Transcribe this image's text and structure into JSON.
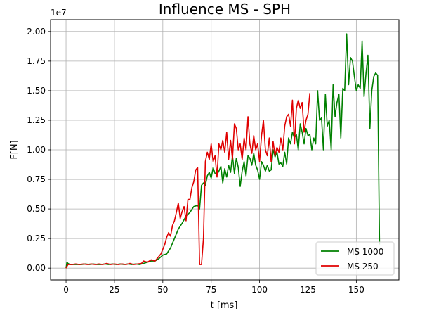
{
  "chart_data": {
    "type": "line",
    "title": "Influence MS - SPH",
    "xlabel": "t [ms]",
    "ylabel": "F[N]",
    "y_offset_label": "1e7",
    "xlim": [
      -8,
      172
    ],
    "ylim": [
      -0.1,
      2.1
    ],
    "xticks": [
      0,
      25,
      50,
      75,
      100,
      125,
      150
    ],
    "yticks": [
      0.0,
      0.25,
      0.5,
      0.75,
      1.0,
      1.25,
      1.5,
      1.75,
      2.0
    ],
    "xtick_labels": [
      "0",
      "25",
      "50",
      "75",
      "100",
      "125",
      "150"
    ],
    "ytick_labels": [
      "0.00",
      "0.25",
      "0.50",
      "0.75",
      "1.00",
      "1.25",
      "1.50",
      "1.75",
      "2.00"
    ],
    "grid": true,
    "legend_position": "bottom-right",
    "series": [
      {
        "name": "MS 1000",
        "color": "#008000",
        "points": [
          [
            0,
            0.0
          ],
          [
            0.5,
            0.05
          ],
          [
            1,
            0.04
          ],
          [
            2,
            0.03
          ],
          [
            4,
            0.03
          ],
          [
            6,
            0.03
          ],
          [
            8,
            0.03
          ],
          [
            10,
            0.035
          ],
          [
            12,
            0.03
          ],
          [
            14,
            0.035
          ],
          [
            16,
            0.03
          ],
          [
            18,
            0.03
          ],
          [
            20,
            0.035
          ],
          [
            22,
            0.03
          ],
          [
            24,
            0.035
          ],
          [
            26,
            0.03
          ],
          [
            28,
            0.035
          ],
          [
            30,
            0.03
          ],
          [
            32,
            0.035
          ],
          [
            34,
            0.03
          ],
          [
            36,
            0.035
          ],
          [
            38,
            0.03
          ],
          [
            40,
            0.04
          ],
          [
            42,
            0.05
          ],
          [
            44,
            0.06
          ],
          [
            46,
            0.06
          ],
          [
            48,
            0.08
          ],
          [
            50,
            0.11
          ],
          [
            52,
            0.12
          ],
          [
            54,
            0.17
          ],
          [
            56,
            0.25
          ],
          [
            58,
            0.33
          ],
          [
            60,
            0.38
          ],
          [
            62,
            0.44
          ],
          [
            64,
            0.47
          ],
          [
            66,
            0.52
          ],
          [
            68,
            0.53
          ],
          [
            69,
            0.5
          ],
          [
            70,
            0.7
          ],
          [
            71,
            0.72
          ],
          [
            72,
            0.7
          ],
          [
            73,
            0.78
          ],
          [
            74,
            0.81
          ],
          [
            75,
            0.76
          ],
          [
            76,
            0.85
          ],
          [
            77,
            0.8
          ],
          [
            78,
            0.79
          ],
          [
            79,
            0.82
          ],
          [
            80,
            0.86
          ],
          [
            81,
            0.72
          ],
          [
            82,
            0.84
          ],
          [
            83,
            0.77
          ],
          [
            84,
            0.87
          ],
          [
            85,
            0.81
          ],
          [
            86,
            0.95
          ],
          [
            87,
            0.8
          ],
          [
            88,
            0.93
          ],
          [
            89,
            0.85
          ],
          [
            90,
            0.69
          ],
          [
            91,
            0.82
          ],
          [
            92,
            0.9
          ],
          [
            93,
            0.78
          ],
          [
            94,
            0.95
          ],
          [
            95,
            0.93
          ],
          [
            96,
            0.87
          ],
          [
            97,
            0.97
          ],
          [
            98,
            0.87
          ],
          [
            99,
            0.83
          ],
          [
            100,
            0.75
          ],
          [
            101,
            0.9
          ],
          [
            102,
            0.87
          ],
          [
            103,
            0.82
          ],
          [
            104,
            0.87
          ],
          [
            105,
            0.82
          ],
          [
            106,
            0.83
          ],
          [
            107,
            1.0
          ],
          [
            108,
            0.94
          ],
          [
            109,
            0.98
          ],
          [
            110,
            0.88
          ],
          [
            111,
            0.89
          ],
          [
            112,
            0.86
          ],
          [
            113,
            0.98
          ],
          [
            114,
            0.88
          ],
          [
            115,
            1.1
          ],
          [
            116,
            1.05
          ],
          [
            117,
            1.15
          ],
          [
            118,
            1.1
          ],
          [
            119,
            1.13
          ],
          [
            120,
            1.0
          ],
          [
            121,
            1.22
          ],
          [
            122,
            1.15
          ],
          [
            123,
            1.05
          ],
          [
            124,
            1.18
          ],
          [
            125,
            1.12
          ],
          [
            126,
            1.13
          ],
          [
            127,
            1.0
          ],
          [
            128,
            1.1
          ],
          [
            129,
            1.05
          ],
          [
            130,
            1.5
          ],
          [
            131,
            1.25
          ],
          [
            132,
            1.27
          ],
          [
            133,
            1.0
          ],
          [
            134,
            1.47
          ],
          [
            135,
            1.2
          ],
          [
            136,
            1.25
          ],
          [
            137,
            1.0
          ],
          [
            138,
            1.55
          ],
          [
            139,
            1.28
          ],
          [
            140,
            1.4
          ],
          [
            141,
            1.47
          ],
          [
            142,
            1.1
          ],
          [
            143,
            1.52
          ],
          [
            144,
            1.5
          ],
          [
            145,
            1.98
          ],
          [
            146,
            1.55
          ],
          [
            147,
            1.78
          ],
          [
            148,
            1.75
          ],
          [
            149,
            1.62
          ],
          [
            150,
            1.5
          ],
          [
            151,
            1.55
          ],
          [
            152,
            1.52
          ],
          [
            153,
            1.92
          ],
          [
            154,
            1.45
          ],
          [
            155,
            1.65
          ],
          [
            156,
            1.8
          ],
          [
            157,
            1.18
          ],
          [
            158,
            1.5
          ],
          [
            159,
            1.62
          ],
          [
            160,
            1.65
          ],
          [
            161,
            1.63
          ],
          [
            162,
            0.2
          ]
        ]
      },
      {
        "name": "MS 250",
        "color": "#e00000",
        "points": [
          [
            0,
            0.0
          ],
          [
            1,
            0.03
          ],
          [
            3,
            0.03
          ],
          [
            5,
            0.035
          ],
          [
            7,
            0.03
          ],
          [
            9,
            0.035
          ],
          [
            11,
            0.03
          ],
          [
            13,
            0.035
          ],
          [
            15,
            0.03
          ],
          [
            17,
            0.035
          ],
          [
            19,
            0.03
          ],
          [
            21,
            0.04
          ],
          [
            23,
            0.03
          ],
          [
            25,
            0.035
          ],
          [
            27,
            0.03
          ],
          [
            29,
            0.035
          ],
          [
            31,
            0.03
          ],
          [
            33,
            0.04
          ],
          [
            35,
            0.03
          ],
          [
            37,
            0.035
          ],
          [
            39,
            0.04
          ],
          [
            40,
            0.06
          ],
          [
            42,
            0.05
          ],
          [
            44,
            0.07
          ],
          [
            46,
            0.06
          ],
          [
            48,
            0.1
          ],
          [
            49,
            0.12
          ],
          [
            50,
            0.16
          ],
          [
            51,
            0.2
          ],
          [
            52,
            0.26
          ],
          [
            53,
            0.3
          ],
          [
            54,
            0.27
          ],
          [
            55,
            0.36
          ],
          [
            56,
            0.4
          ],
          [
            57,
            0.47
          ],
          [
            58,
            0.55
          ],
          [
            59,
            0.42
          ],
          [
            60,
            0.48
          ],
          [
            61,
            0.52
          ],
          [
            62,
            0.4
          ],
          [
            63,
            0.58
          ],
          [
            64,
            0.58
          ],
          [
            65,
            0.68
          ],
          [
            66,
            0.73
          ],
          [
            67,
            0.83
          ],
          [
            68,
            0.85
          ],
          [
            69,
            0.03
          ],
          [
            70,
            0.03
          ],
          [
            71,
            0.25
          ],
          [
            72,
            0.9
          ],
          [
            73,
            0.98
          ],
          [
            74,
            0.92
          ],
          [
            75,
            1.05
          ],
          [
            76,
            0.9
          ],
          [
            77,
            0.95
          ],
          [
            78,
            0.77
          ],
          [
            79,
            1.05
          ],
          [
            80,
            1.0
          ],
          [
            81,
            1.08
          ],
          [
            82,
            0.98
          ],
          [
            83,
            1.15
          ],
          [
            84,
            0.92
          ],
          [
            85,
            1.08
          ],
          [
            86,
            0.92
          ],
          [
            87,
            1.22
          ],
          [
            88,
            1.18
          ],
          [
            89,
            1.0
          ],
          [
            90,
            1.05
          ],
          [
            91,
            0.92
          ],
          [
            92,
            1.1
          ],
          [
            93,
            1.0
          ],
          [
            94,
            1.28
          ],
          [
            95,
            1.05
          ],
          [
            96,
            0.97
          ],
          [
            97,
            1.12
          ],
          [
            98,
            1.0
          ],
          [
            99,
            1.05
          ],
          [
            100,
            0.9
          ],
          [
            101,
            1.12
          ],
          [
            102,
            1.25
          ],
          [
            103,
            1.0
          ],
          [
            104,
            0.95
          ],
          [
            105,
            1.1
          ],
          [
            106,
            0.9
          ],
          [
            107,
            1.07
          ],
          [
            108,
            0.95
          ],
          [
            109,
            1.02
          ],
          [
            110,
            0.98
          ],
          [
            111,
            1.1
          ],
          [
            112,
            1.0
          ],
          [
            113,
            1.2
          ],
          [
            114,
            1.28
          ],
          [
            115,
            1.3
          ],
          [
            116,
            1.2
          ],
          [
            117,
            1.42
          ],
          [
            118,
            1.05
          ],
          [
            119,
            1.35
          ],
          [
            120,
            1.42
          ],
          [
            121,
            1.35
          ],
          [
            122,
            1.4
          ],
          [
            123,
            1.15
          ],
          [
            124,
            1.25
          ],
          [
            125,
            1.3
          ],
          [
            126,
            1.48
          ]
        ]
      }
    ]
  }
}
